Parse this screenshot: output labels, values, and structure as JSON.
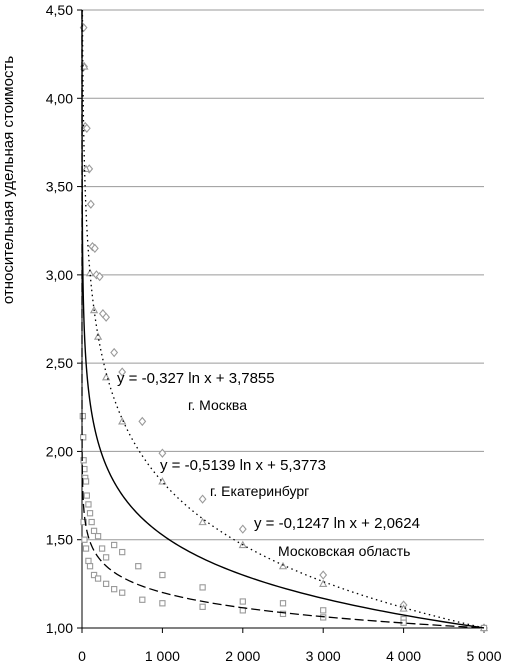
{
  "chart_data": {
    "type": "scatter",
    "title": "",
    "xlabel": "",
    "ylabel": "относительная удельная стоимость",
    "xlim": [
      0,
      5000
    ],
    "ylim": [
      1.0,
      4.5
    ],
    "x_ticks": [
      0,
      1000,
      2000,
      3000,
      4000,
      5000
    ],
    "x_tick_labels": [
      "0",
      "1 000",
      "2 000",
      "3 000",
      "4 000",
      "5 000"
    ],
    "y_ticks": [
      1.0,
      1.5,
      2.0,
      2.5,
      3.0,
      3.5,
      4.0,
      4.5
    ],
    "y_tick_labels": [
      "1,00",
      "1,50",
      "2,00",
      "2,50",
      "3,00",
      "3,50",
      "4,00",
      "4,50"
    ],
    "grid": "horizontal",
    "series": [
      {
        "city": "г. Москва",
        "equation": "y = -0,327 ln x + 3,7855",
        "trend": {
          "a": -0.327,
          "b": 3.7855,
          "coef_ln": -0.327,
          "intercept": 3.7855
        },
        "marker": "diamond",
        "points": [
          [
            20,
            4.4
          ],
          [
            25,
            4.18
          ],
          [
            40,
            3.84
          ],
          [
            60,
            3.83
          ],
          [
            90,
            3.6
          ],
          [
            110,
            3.4
          ],
          [
            130,
            3.16
          ],
          [
            160,
            3.15
          ],
          [
            180,
            3.0
          ],
          [
            220,
            2.99
          ],
          [
            260,
            2.78
          ],
          [
            300,
            2.76
          ],
          [
            400,
            2.56
          ],
          [
            500,
            2.45
          ],
          [
            750,
            2.17
          ],
          [
            1000,
            1.99
          ],
          [
            1500,
            1.73
          ],
          [
            2000,
            1.56
          ],
          [
            3000,
            1.3
          ],
          [
            4000,
            1.13
          ],
          [
            5000,
            1.0
          ]
        ]
      },
      {
        "city": "г. Екатеринбург",
        "equation": "y = -0,5139 ln x + 5,3773",
        "trend": {
          "coef_ln": -0.5139,
          "intercept": 5.3773
        },
        "marker": "triangle",
        "points": [
          [
            30,
            4.18
          ],
          [
            50,
            3.6
          ],
          [
            100,
            3.01
          ],
          [
            150,
            2.8
          ],
          [
            200,
            2.65
          ],
          [
            300,
            2.42
          ],
          [
            500,
            2.17
          ],
          [
            1000,
            1.83
          ],
          [
            1500,
            1.6
          ],
          [
            2000,
            1.47
          ],
          [
            2500,
            1.35
          ],
          [
            3000,
            1.25
          ],
          [
            4000,
            1.11
          ],
          [
            5000,
            1.0
          ]
        ]
      },
      {
        "city": "Московская область",
        "equation": "y = -0,1247 ln x + 2,0624",
        "trend": {
          "coef_ln": -0.1247,
          "intercept": 2.0624
        },
        "marker": "square",
        "points": [
          [
            10,
            2.2
          ],
          [
            15,
            2.08
          ],
          [
            20,
            1.95
          ],
          [
            30,
            1.9
          ],
          [
            40,
            1.85
          ],
          [
            50,
            1.83
          ],
          [
            60,
            1.75
          ],
          [
            80,
            1.7
          ],
          [
            100,
            1.65
          ],
          [
            120,
            1.6
          ],
          [
            150,
            1.55
          ],
          [
            200,
            1.52
          ],
          [
            250,
            1.45
          ],
          [
            300,
            1.4
          ],
          [
            400,
            1.47
          ],
          [
            500,
            1.43
          ],
          [
            700,
            1.35
          ],
          [
            1000,
            1.3
          ],
          [
            1500,
            1.23
          ],
          [
            2000,
            1.15
          ],
          [
            2500,
            1.14
          ],
          [
            3000,
            1.1
          ],
          [
            4000,
            1.05
          ],
          [
            5000,
            1.0
          ],
          [
            20,
            1.6
          ],
          [
            30,
            1.5
          ],
          [
            50,
            1.45
          ],
          [
            80,
            1.38
          ],
          [
            100,
            1.35
          ],
          [
            150,
            1.3
          ],
          [
            200,
            1.28
          ],
          [
            300,
            1.25
          ],
          [
            400,
            1.22
          ],
          [
            500,
            1.2
          ],
          [
            750,
            1.16
          ],
          [
            1000,
            1.14
          ],
          [
            1500,
            1.12
          ],
          [
            2000,
            1.1
          ],
          [
            2500,
            1.08
          ],
          [
            3000,
            1.06
          ],
          [
            4000,
            1.03
          ]
        ]
      }
    ],
    "colors": {
      "markers": "#9a9a9a",
      "lines": "#000000",
      "grid": "#9a9a9a"
    }
  }
}
